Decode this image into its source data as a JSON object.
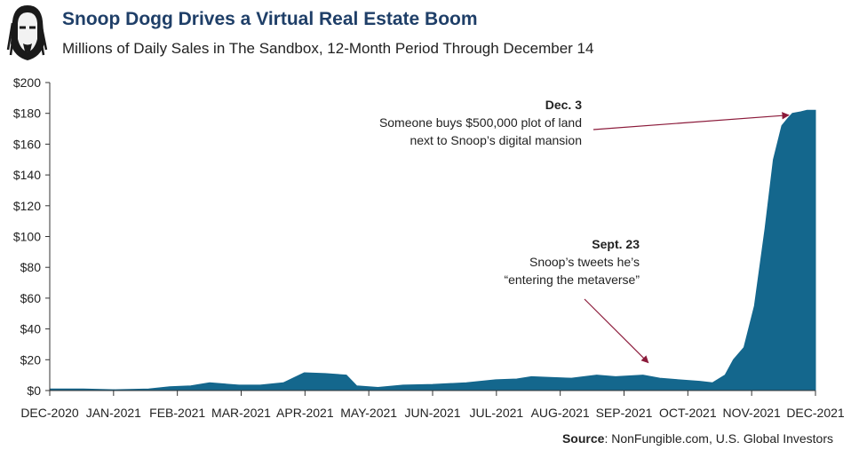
{
  "header": {
    "title": "Snoop Dogg Drives a Virtual Real Estate Boom",
    "subtitle": "Millions of Daily Sales in The Sandbox, 12-Month Period Through December 14"
  },
  "source": {
    "label": "Source",
    "text": ": NonFungible.com, U.S. Global Investors"
  },
  "colors": {
    "area": "#14678d",
    "arrow": "#8b1a3a",
    "title": "#1f3f68"
  },
  "chart_data": {
    "type": "area",
    "title": "Millions of Daily Sales in The Sandbox, 12-Month Period Through December 14",
    "ylim": [
      0,
      200
    ],
    "y_ticks": [
      "$0",
      "$20",
      "$40",
      "$60",
      "$80",
      "$100",
      "$120",
      "$140",
      "$160",
      "$180",
      "$200"
    ],
    "x_ticks": [
      "DEC-2020",
      "JAN-2021",
      "FEB-2021",
      "MAR-2021",
      "APR-2021",
      "MAY-2021",
      "JUN-2021",
      "JUL-2021",
      "AUG-2021",
      "SEP-2021",
      "OCT-2021",
      "NOV-2021",
      "DEC-2021"
    ],
    "grid": false,
    "series": [
      {
        "x": [
          "2020-12-15",
          "2020-12-31",
          "2021-01-15",
          "2021-01-31",
          "2021-02-10",
          "2021-02-20",
          "2021-03-01",
          "2021-03-15",
          "2021-03-25",
          "2021-04-05",
          "2021-04-15",
          "2021-04-25",
          "2021-05-05",
          "2021-05-10",
          "2021-05-20",
          "2021-06-01",
          "2021-06-15",
          "2021-07-01",
          "2021-07-15",
          "2021-07-25",
          "2021-08-01",
          "2021-08-10",
          "2021-08-20",
          "2021-09-01",
          "2021-09-10",
          "2021-09-23",
          "2021-10-01",
          "2021-10-10",
          "2021-10-20",
          "2021-10-26",
          "2021-11-01",
          "2021-11-05",
          "2021-11-10",
          "2021-11-15",
          "2021-11-20",
          "2021-11-24",
          "2021-11-28",
          "2021-12-01",
          "2021-12-03",
          "2021-12-07",
          "2021-12-10",
          "2021-12-14"
        ],
        "values": [
          1,
          1,
          0.5,
          1,
          2.5,
          3,
          5,
          3.5,
          3.5,
          5,
          11.5,
          11,
          10,
          3,
          2,
          3.5,
          4,
          5,
          7,
          7.5,
          9,
          8.5,
          8,
          10,
          9,
          10,
          8,
          7,
          6,
          5,
          10,
          20,
          28,
          55,
          105,
          150,
          172,
          177,
          180,
          181,
          182,
          182
        ]
      }
    ],
    "annotations": [
      {
        "date": "2021-12-03",
        "value": 180,
        "title": "Dec. 3",
        "lines": [
          "Someone buys $500,000 plot of land",
          "next to Snoop’s digital mansion"
        ]
      },
      {
        "date": "2021-09-23",
        "value": 10,
        "title": "Sept. 23",
        "lines": [
          "Snoop’s tweets he’s",
          "“entering the metaverse”"
        ]
      }
    ]
  }
}
